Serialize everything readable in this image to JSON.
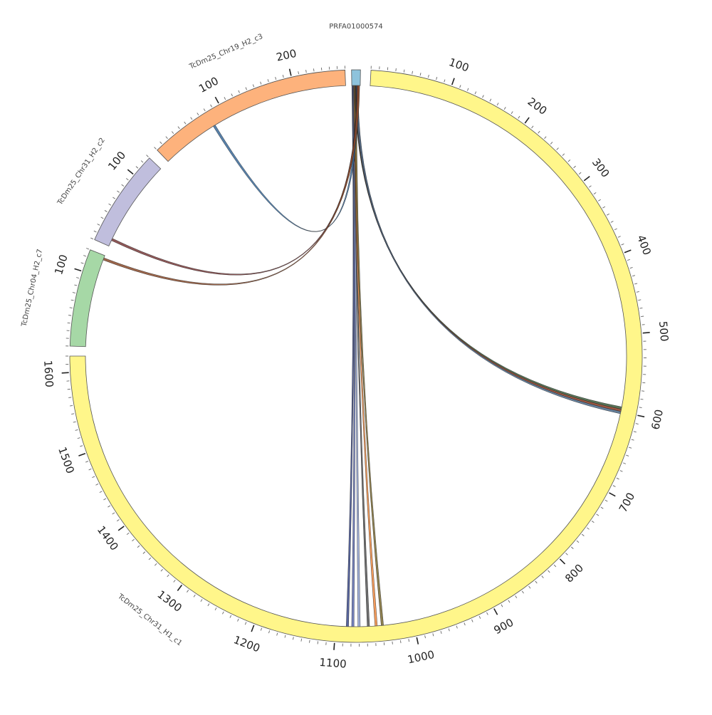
{
  "diagram": {
    "type": "circos",
    "ring_stroke": "#555555",
    "segments": [
      {
        "id": "PRFA01000574",
        "label": "PRFA01000574",
        "length": 6,
        "color": "#8ec3dc",
        "ticks": [],
        "label_lines": true
      },
      {
        "id": "c1",
        "label": "TcDm25_Chr31_H1_c1",
        "length": 1620,
        "color": "#fff68a",
        "ticks": [
          100,
          200,
          300,
          400,
          500,
          600,
          700,
          800,
          900,
          1000,
          1100,
          1200,
          1300,
          1400,
          1500,
          1600
        ]
      },
      {
        "id": "c7",
        "label": "TcDm25_Chr04_H2_c7",
        "length": 130,
        "color": "#a6d8a6",
        "ticks": [
          100
        ]
      },
      {
        "id": "c2",
        "label": "TcDm25_Chr31_H2_c2",
        "length": 130,
        "color": "#c0bedd",
        "ticks": [
          100
        ]
      },
      {
        "id": "c3",
        "label": "TcDm25_Chr19_H2_c3",
        "length": 270,
        "color": "#fdb27c",
        "ticks": [
          100,
          200
        ]
      }
    ],
    "links": [
      {
        "from": "PRFA01000574",
        "to": "c1",
        "to_position": 1085,
        "color": "#3b4a8c"
      },
      {
        "from": "PRFA01000574",
        "to": "c1",
        "to_position": 1078,
        "color": "#5a6ab0"
      },
      {
        "from": "PRFA01000574",
        "to": "c1",
        "to_position": 1070,
        "color": "#8ea0d0"
      },
      {
        "from": "PRFA01000574",
        "to": "c1",
        "to_position": 1058,
        "color": "#555555"
      },
      {
        "from": "PRFA01000574",
        "to": "c1",
        "to_position": 1048,
        "color": "#f08a40"
      },
      {
        "from": "PRFA01000574",
        "to": "c1",
        "to_position": 1040,
        "color": "#7a6a30"
      },
      {
        "from": "PRFA01000574",
        "to": "c1",
        "to_position": 595,
        "color": "#3a5a3a"
      },
      {
        "from": "PRFA01000574",
        "to": "c1",
        "to_position": 598,
        "color": "#8a3a20"
      },
      {
        "from": "PRFA01000574",
        "to": "c1",
        "to_position": 601,
        "color": "#4a6a8a"
      },
      {
        "from": "PRFA01000574",
        "to": "c3",
        "to_position": 80,
        "color": "#3a6a9a"
      },
      {
        "from": "PRFA01000574",
        "to": "c2",
        "to_position": 10,
        "color": "#7a3a3a"
      },
      {
        "from": "PRFA01000574",
        "to": "c7",
        "to_position": 125,
        "color": "#8a4a2a"
      }
    ]
  }
}
